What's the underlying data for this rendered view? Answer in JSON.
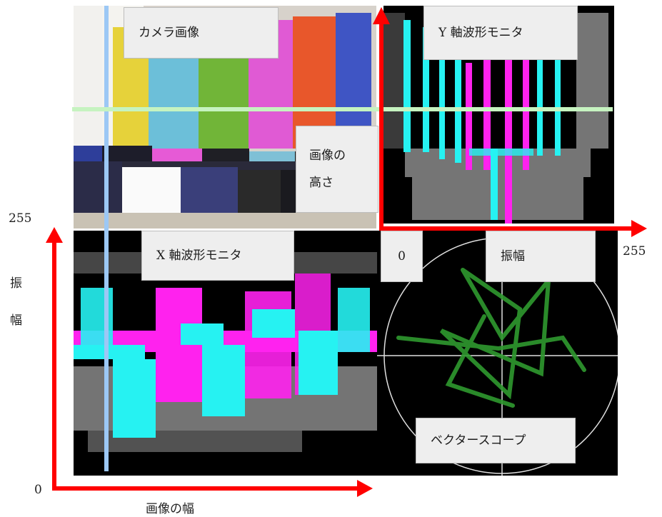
{
  "labels": {
    "camera": "カメラ画像",
    "y_waveform": "Y 軸波形モニタ",
    "x_waveform": "X 軸波形モニタ",
    "vectorscope": "ベクタースコープ",
    "image_height_line1": "画像の",
    "image_height_line2": "高さ",
    "zero_box": "0",
    "amplitude_box": "振幅"
  },
  "axes": {
    "left_max": "255",
    "left_amp_1": "振",
    "left_amp_2": "幅",
    "origin_zero": "0",
    "x_label": "画像の幅",
    "right_max": "255"
  },
  "colors": {
    "arrow": "#ff0000",
    "blue_guide": "#9cc8f5",
    "green_guide": "#c6f3c0",
    "cyan_trace": "#26f2f2",
    "magenta_trace": "#ff22ee",
    "gray_trace": "#8a8a8a",
    "vector_green": "#2f9a2f"
  },
  "icons": {
    "arrow_icon": "arrow-right-red / arrow-up-red"
  }
}
